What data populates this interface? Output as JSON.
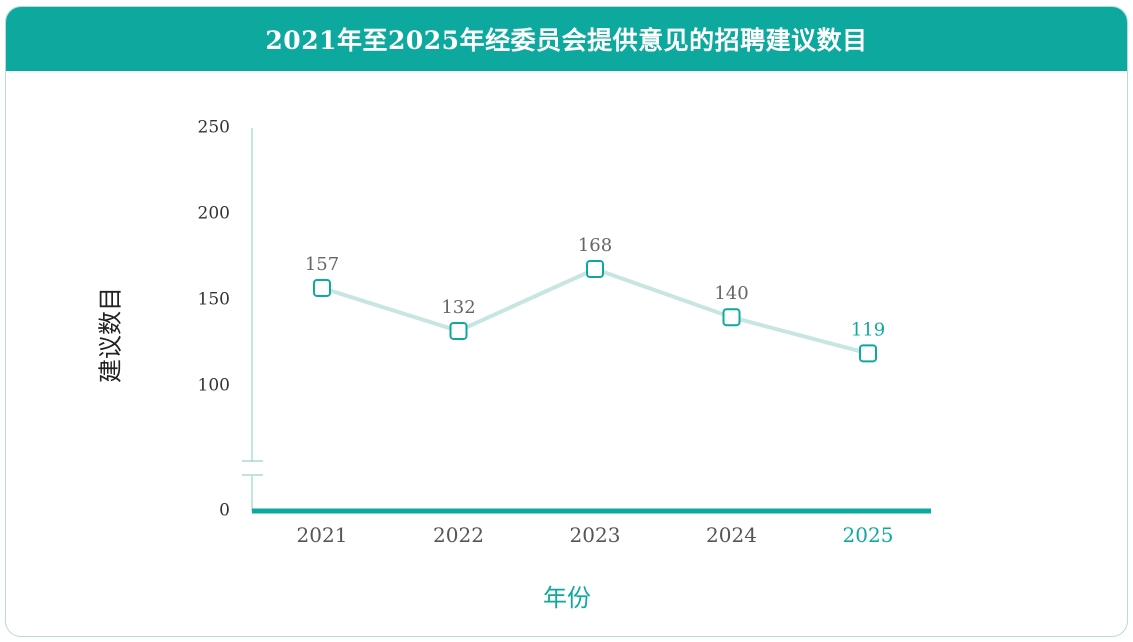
{
  "header": {
    "title": "2021年至2025年经委员会提供意见的招聘建议数目"
  },
  "chart_data": {
    "type": "line",
    "title": "2021年至2025年经委员会提供意见的招聘建议数目",
    "xlabel": "年份",
    "ylabel": "建议数目",
    "categories": [
      "2021",
      "2022",
      "2023",
      "2024",
      "2025"
    ],
    "values": [
      157,
      132,
      168,
      140,
      119
    ],
    "yticks": [
      0,
      100,
      150,
      200,
      250
    ],
    "ylim": [
      0,
      250
    ],
    "axis_break": true,
    "highlight_category": "2025",
    "colors": {
      "accent": "#0ea99e",
      "line": "#c7e6e1",
      "axis": "#9fd1cb"
    }
  }
}
